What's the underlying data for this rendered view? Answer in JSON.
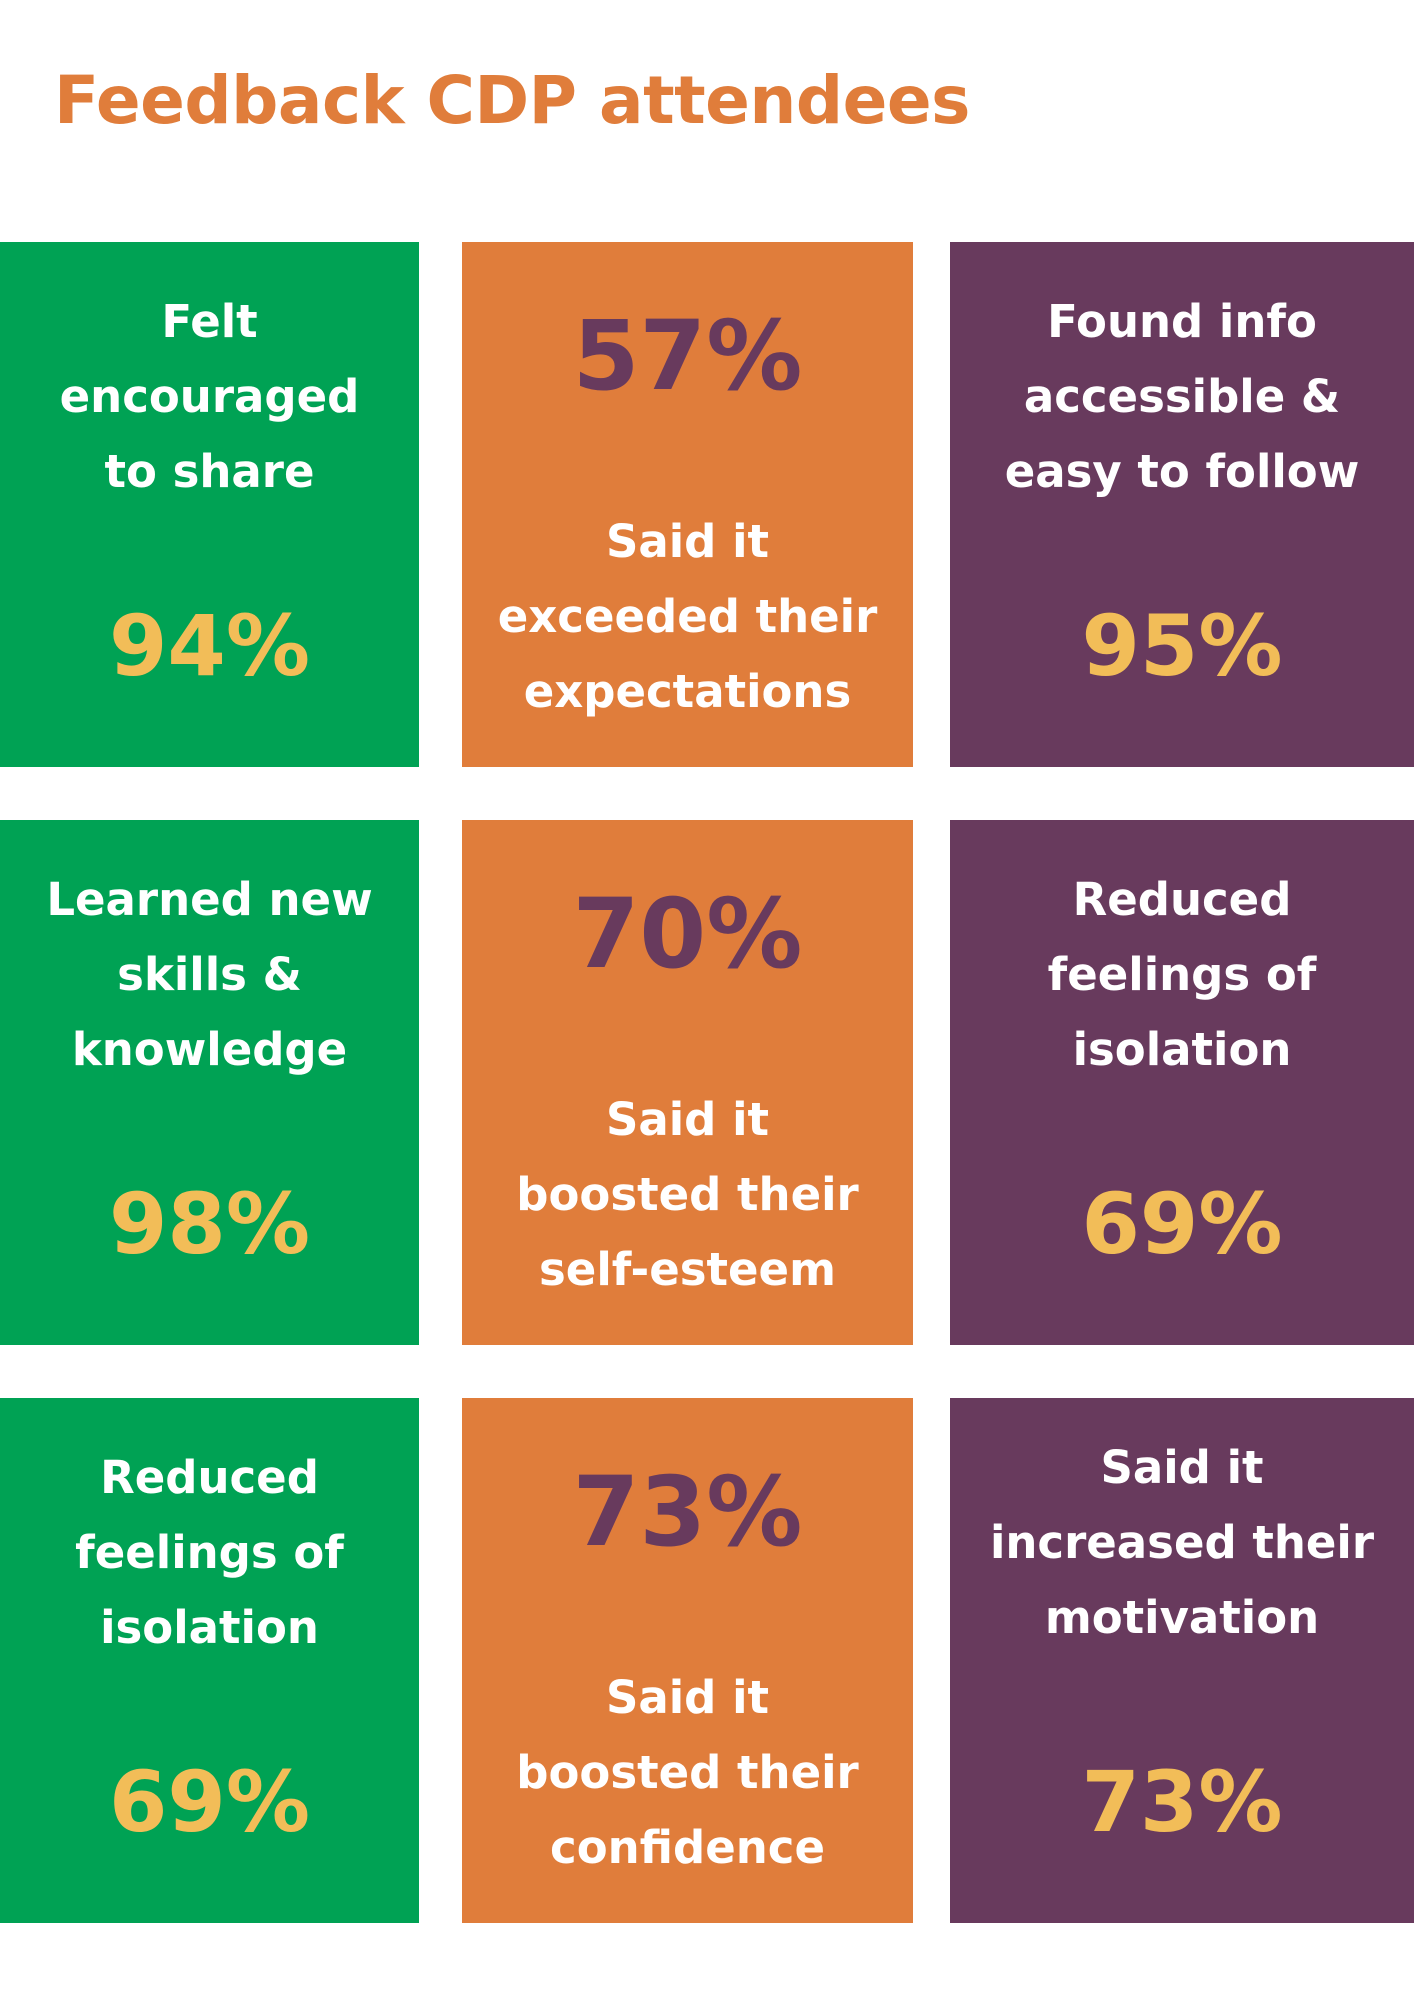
{
  "title": "Feedback CDP attendees",
  "colors": {
    "title": "#E07D3B",
    "green": "#00A254",
    "orange": "#E07D3B",
    "purple": "#683A5D",
    "yellow": "#F2BD58",
    "white": "#FFFFFF"
  },
  "tiles": [
    {
      "label_lines": [
        "Felt",
        "encouraged",
        "to share"
      ],
      "value": "94%"
    },
    {
      "label_lines": [
        "Said it",
        "exceeded their",
        "expectations"
      ],
      "value": "57%"
    },
    {
      "label_lines": [
        "Found info",
        "accessible &",
        "easy to follow"
      ],
      "value": "95%"
    },
    {
      "label_lines": [
        "Learned new",
        "skills &",
        "knowledge"
      ],
      "value": "98%"
    },
    {
      "label_lines": [
        "Said it",
        "boosted their",
        "self-esteem"
      ],
      "value": "70%"
    },
    {
      "label_lines": [
        "Reduced",
        "feelings of",
        "isolation"
      ],
      "value": "69%"
    },
    {
      "label_lines": [
        "Reduced",
        "feelings of",
        "isolation"
      ],
      "value": "69%"
    },
    {
      "label_lines": [
        "Said it",
        "boosted their",
        "confidence"
      ],
      "value": "73%"
    },
    {
      "label_lines": [
        "Said it",
        "increased their",
        "motivation"
      ],
      "value": "73%"
    }
  ]
}
